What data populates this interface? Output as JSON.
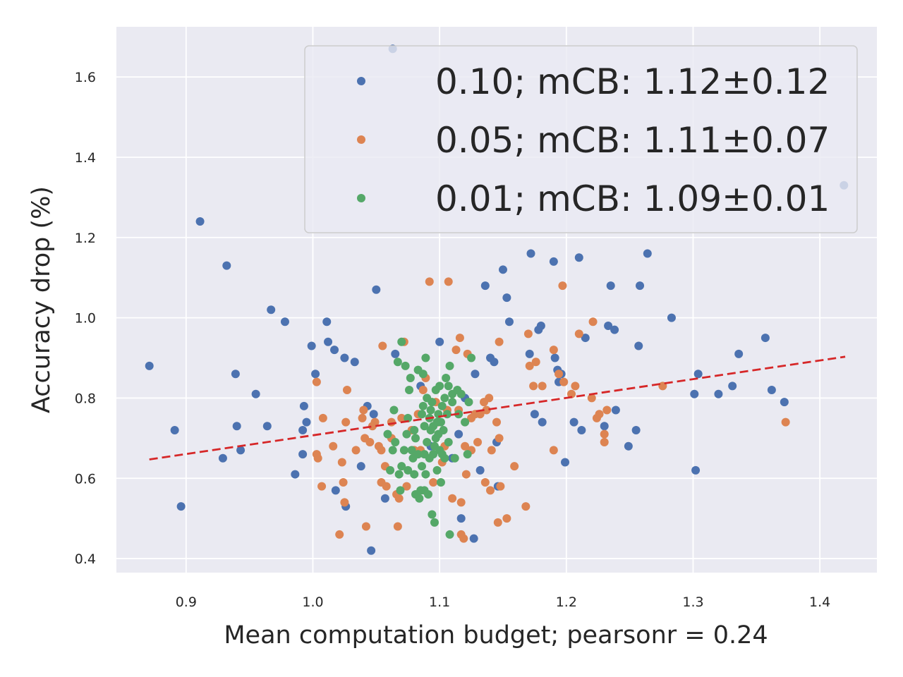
{
  "chart_data": {
    "type": "scatter",
    "xlabel": "Mean computation budget; pearsonr = 0.24",
    "ylabel": "Accuracy drop (%)",
    "xlim": [
      0.845,
      1.445
    ],
    "ylim": [
      0.365,
      1.725
    ],
    "xticks": [
      0.9,
      1.0,
      1.1,
      1.2,
      1.3,
      1.4
    ],
    "yticks": [
      0.4,
      0.6,
      0.8,
      1.0,
      1.2,
      1.4,
      1.6
    ],
    "xtick_labels": [
      "0.9",
      "1.0",
      "1.1",
      "1.2",
      "1.3",
      "1.4"
    ],
    "ytick_labels": [
      "0.4",
      "0.6",
      "0.8",
      "1.0",
      "1.2",
      "1.4",
      "1.6"
    ],
    "grid": true,
    "legend_position": "top-right",
    "trendline": {
      "color": "#d62728",
      "style": "dashed",
      "x": [
        0.871,
        1.42
      ],
      "y": [
        0.647,
        0.903
      ]
    },
    "series": [
      {
        "name": "0.10; mCB: 1.12±0.12",
        "color": "#4c72b0",
        "points": [
          [
            0.871,
            0.88
          ],
          [
            0.891,
            0.72
          ],
          [
            0.896,
            0.53
          ],
          [
            0.911,
            1.24
          ],
          [
            0.929,
            0.65
          ],
          [
            0.932,
            1.13
          ],
          [
            0.939,
            0.86
          ],
          [
            0.94,
            0.73
          ],
          [
            0.943,
            0.67
          ],
          [
            0.955,
            0.81
          ],
          [
            0.964,
            0.73
          ],
          [
            0.967,
            1.02
          ],
          [
            0.978,
            0.99
          ],
          [
            0.986,
            0.61
          ],
          [
            0.992,
            0.66
          ],
          [
            0.992,
            0.72
          ],
          [
            0.993,
            0.78
          ],
          [
            0.995,
            0.74
          ],
          [
            0.999,
            0.93
          ],
          [
            1.002,
            0.86
          ],
          [
            1.011,
            0.99
          ],
          [
            1.012,
            0.94
          ],
          [
            1.017,
            0.92
          ],
          [
            1.018,
            0.57
          ],
          [
            1.025,
            0.9
          ],
          [
            1.026,
            0.53
          ],
          [
            1.033,
            0.89
          ],
          [
            1.038,
            0.63
          ],
          [
            1.043,
            0.78
          ],
          [
            1.046,
            0.42
          ],
          [
            1.048,
            0.76
          ],
          [
            1.05,
            1.07
          ],
          [
            1.057,
            0.55
          ],
          [
            1.063,
            1.67
          ],
          [
            1.065,
            0.91
          ],
          [
            1.085,
            0.83
          ],
          [
            1.093,
            0.68
          ],
          [
            1.1,
            0.94
          ],
          [
            1.11,
            0.65
          ],
          [
            1.115,
            0.71
          ],
          [
            1.117,
            0.5
          ],
          [
            1.12,
            0.8
          ],
          [
            1.127,
            0.45
          ],
          [
            1.128,
            0.86
          ],
          [
            1.132,
            0.62
          ],
          [
            1.136,
            1.08
          ],
          [
            1.14,
            0.9
          ],
          [
            1.143,
            0.89
          ],
          [
            1.145,
            0.69
          ],
          [
            1.146,
            0.58
          ],
          [
            1.15,
            1.12
          ],
          [
            1.153,
            1.05
          ],
          [
            1.155,
            0.99
          ],
          [
            1.171,
            0.91
          ],
          [
            1.172,
            1.16
          ],
          [
            1.175,
            0.76
          ],
          [
            1.178,
            0.97
          ],
          [
            1.18,
            0.98
          ],
          [
            1.181,
            0.74
          ],
          [
            1.19,
            1.14
          ],
          [
            1.191,
            0.9
          ],
          [
            1.193,
            0.87
          ],
          [
            1.194,
            0.84
          ],
          [
            1.196,
            0.86
          ],
          [
            1.199,
            0.64
          ],
          [
            1.206,
            0.74
          ],
          [
            1.21,
            1.15
          ],
          [
            1.212,
            0.72
          ],
          [
            1.215,
            0.95
          ],
          [
            1.23,
            0.73
          ],
          [
            1.233,
            0.98
          ],
          [
            1.235,
            1.08
          ],
          [
            1.238,
            0.97
          ],
          [
            1.239,
            0.77
          ],
          [
            1.249,
            0.68
          ],
          [
            1.255,
            0.72
          ],
          [
            1.257,
            0.93
          ],
          [
            1.258,
            1.08
          ],
          [
            1.264,
            1.16
          ],
          [
            1.283,
            1.0
          ],
          [
            1.301,
            0.81
          ],
          [
            1.302,
            0.62
          ],
          [
            1.304,
            0.86
          ],
          [
            1.32,
            0.81
          ],
          [
            1.331,
            0.83
          ],
          [
            1.336,
            0.91
          ],
          [
            1.357,
            0.95
          ],
          [
            1.362,
            0.82
          ],
          [
            1.372,
            0.79
          ],
          [
            1.419,
            1.33
          ]
        ]
      },
      {
        "name": "0.05; mCB: 1.11±0.07",
        "color": "#dd8452",
        "points": [
          [
            1.003,
            0.84
          ],
          [
            1.003,
            0.66
          ],
          [
            1.004,
            0.65
          ],
          [
            1.007,
            0.58
          ],
          [
            1.008,
            0.75
          ],
          [
            1.016,
            0.68
          ],
          [
            1.021,
            0.46
          ],
          [
            1.023,
            0.64
          ],
          [
            1.024,
            0.59
          ],
          [
            1.025,
            0.54
          ],
          [
            1.026,
            0.74
          ],
          [
            1.027,
            0.82
          ],
          [
            1.034,
            0.67
          ],
          [
            1.039,
            0.75
          ],
          [
            1.04,
            0.77
          ],
          [
            1.041,
            0.7
          ],
          [
            1.042,
            0.48
          ],
          [
            1.045,
            0.69
          ],
          [
            1.047,
            0.73
          ],
          [
            1.049,
            0.74
          ],
          [
            1.052,
            0.68
          ],
          [
            1.054,
            0.67
          ],
          [
            1.054,
            0.59
          ],
          [
            1.055,
            0.93
          ],
          [
            1.057,
            0.63
          ],
          [
            1.058,
            0.58
          ],
          [
            1.062,
            0.74
          ],
          [
            1.062,
            0.7
          ],
          [
            1.066,
            0.56
          ],
          [
            1.067,
            0.48
          ],
          [
            1.068,
            0.55
          ],
          [
            1.07,
            0.75
          ],
          [
            1.072,
            0.94
          ],
          [
            1.074,
            0.58
          ],
          [
            1.078,
            0.72
          ],
          [
            1.08,
            0.67
          ],
          [
            1.083,
            0.76
          ],
          [
            1.085,
            0.67
          ],
          [
            1.087,
            0.82
          ],
          [
            1.089,
            0.85
          ],
          [
            1.092,
            1.09
          ],
          [
            1.095,
            0.59
          ],
          [
            1.097,
            0.79
          ],
          [
            1.099,
            0.74
          ],
          [
            1.102,
            0.64
          ],
          [
            1.104,
            0.68
          ],
          [
            1.106,
            0.77
          ],
          [
            1.107,
            1.09
          ],
          [
            1.11,
            0.55
          ],
          [
            1.113,
            0.92
          ],
          [
            1.115,
            0.77
          ],
          [
            1.116,
            0.95
          ],
          [
            1.117,
            0.54
          ],
          [
            1.117,
            0.46
          ],
          [
            1.119,
            0.45
          ],
          [
            1.12,
            0.68
          ],
          [
            1.121,
            0.61
          ],
          [
            1.122,
            0.91
          ],
          [
            1.125,
            0.67
          ],
          [
            1.125,
            0.75
          ],
          [
            1.128,
            0.76
          ],
          [
            1.13,
            0.69
          ],
          [
            1.132,
            0.76
          ],
          [
            1.135,
            0.79
          ],
          [
            1.136,
            0.59
          ],
          [
            1.137,
            0.77
          ],
          [
            1.139,
            0.8
          ],
          [
            1.14,
            0.57
          ],
          [
            1.141,
            0.67
          ],
          [
            1.145,
            0.74
          ],
          [
            1.146,
            0.49
          ],
          [
            1.147,
            0.94
          ],
          [
            1.147,
            0.7
          ],
          [
            1.148,
            0.58
          ],
          [
            1.153,
            0.5
          ],
          [
            1.159,
            0.63
          ],
          [
            1.168,
            0.53
          ],
          [
            1.17,
            0.96
          ],
          [
            1.171,
            0.88
          ],
          [
            1.174,
            0.83
          ],
          [
            1.176,
            0.89
          ],
          [
            1.181,
            0.83
          ],
          [
            1.19,
            0.67
          ],
          [
            1.19,
            0.92
          ],
          [
            1.194,
            0.86
          ],
          [
            1.197,
            1.08
          ],
          [
            1.198,
            0.84
          ],
          [
            1.204,
            0.81
          ],
          [
            1.207,
            0.83
          ],
          [
            1.21,
            0.96
          ],
          [
            1.22,
            0.8
          ],
          [
            1.221,
            0.99
          ],
          [
            1.224,
            0.75
          ],
          [
            1.226,
            0.76
          ],
          [
            1.23,
            0.71
          ],
          [
            1.23,
            0.69
          ],
          [
            1.232,
            0.77
          ],
          [
            1.276,
            0.83
          ],
          [
            1.373,
            0.74
          ]
        ]
      },
      {
        "name": "0.01; mCB: 1.09±0.01",
        "color": "#55a868",
        "points": [
          [
            1.059,
            0.71
          ],
          [
            1.061,
            0.62
          ],
          [
            1.063,
            0.67
          ],
          [
            1.064,
            0.77
          ],
          [
            1.065,
            0.69
          ],
          [
            1.067,
            0.89
          ],
          [
            1.068,
            0.61
          ],
          [
            1.069,
            0.57
          ],
          [
            1.07,
            0.63
          ],
          [
            1.07,
            0.94
          ],
          [
            1.072,
            0.67
          ],
          [
            1.073,
            0.88
          ],
          [
            1.074,
            0.71
          ],
          [
            1.075,
            0.75
          ],
          [
            1.075,
            0.62
          ],
          [
            1.076,
            0.82
          ],
          [
            1.077,
            0.85
          ],
          [
            1.078,
            0.67
          ],
          [
            1.079,
            0.65
          ],
          [
            1.08,
            0.72
          ],
          [
            1.08,
            0.61
          ],
          [
            1.081,
            0.56
          ],
          [
            1.081,
            0.7
          ],
          [
            1.083,
            0.87
          ],
          [
            1.083,
            0.66
          ],
          [
            1.084,
            0.55
          ],
          [
            1.085,
            0.57
          ],
          [
            1.086,
            0.76
          ],
          [
            1.086,
            0.63
          ],
          [
            1.087,
            0.78
          ],
          [
            1.087,
            0.86
          ],
          [
            1.088,
            0.73
          ],
          [
            1.088,
            0.66
          ],
          [
            1.088,
            0.57
          ],
          [
            1.089,
            0.9
          ],
          [
            1.089,
            0.61
          ],
          [
            1.09,
            0.8
          ],
          [
            1.09,
            0.69
          ],
          [
            1.091,
            0.56
          ],
          [
            1.092,
            0.75
          ],
          [
            1.092,
            0.65
          ],
          [
            1.093,
            0.77
          ],
          [
            1.093,
            0.72
          ],
          [
            1.094,
            0.51
          ],
          [
            1.094,
            0.79
          ],
          [
            1.095,
            0.66
          ],
          [
            1.095,
            0.73
          ],
          [
            1.096,
            0.49
          ],
          [
            1.096,
            0.68
          ],
          [
            1.097,
            0.82
          ],
          [
            1.097,
            0.7
          ],
          [
            1.098,
            0.74
          ],
          [
            1.098,
            0.62
          ],
          [
            1.099,
            0.76
          ],
          [
            1.099,
            0.71
          ],
          [
            1.1,
            0.83
          ],
          [
            1.1,
            0.67
          ],
          [
            1.101,
            0.59
          ],
          [
            1.101,
            0.74
          ],
          [
            1.102,
            0.78
          ],
          [
            1.102,
            0.66
          ],
          [
            1.103,
            0.72
          ],
          [
            1.104,
            0.8
          ],
          [
            1.104,
            0.65
          ],
          [
            1.105,
            0.85
          ],
          [
            1.106,
            0.76
          ],
          [
            1.107,
            0.83
          ],
          [
            1.107,
            0.69
          ],
          [
            1.108,
            0.46
          ],
          [
            1.108,
            0.88
          ],
          [
            1.11,
            0.81
          ],
          [
            1.11,
            0.79
          ],
          [
            1.112,
            0.65
          ],
          [
            1.114,
            0.82
          ],
          [
            1.115,
            0.76
          ],
          [
            1.117,
            0.81
          ],
          [
            1.12,
            0.74
          ],
          [
            1.122,
            0.66
          ],
          [
            1.123,
            0.79
          ],
          [
            1.125,
            0.9
          ]
        ]
      }
    ]
  }
}
